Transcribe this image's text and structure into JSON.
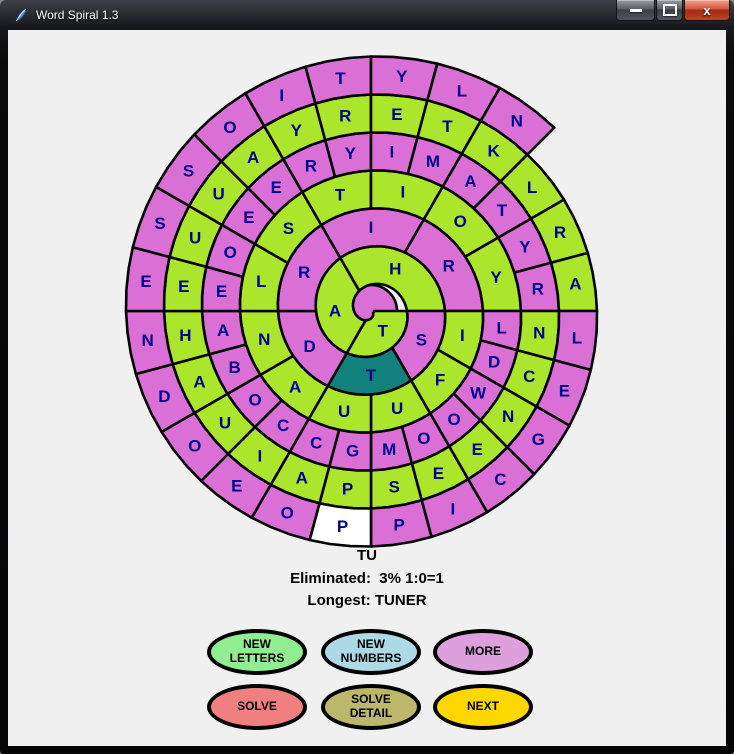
{
  "window": {
    "title": "Word Spiral 1.3",
    "controls": {
      "minimize": "minimize",
      "maximize": "maximize",
      "close": "x"
    }
  },
  "palette": {
    "green": "#abe62d",
    "violet": "#da70d6",
    "teal": "#12807b",
    "white": "#ffffff",
    "letter": "#00008b",
    "outline": "#000000"
  },
  "spiral": {
    "turns": [
      {
        "color": "green",
        "cells": [
          {
            "l": "T"
          },
          {
            "l": "A"
          },
          {
            "l": "H"
          }
        ]
      },
      {
        "color": "violet",
        "cells": [
          {
            "l": "S"
          },
          {
            "l": "T",
            "fill": "teal"
          },
          {
            "l": "D"
          },
          {
            "l": "R"
          },
          {
            "l": "I"
          },
          {
            "l": "R"
          }
        ]
      },
      {
        "color": "green",
        "cells": [
          {
            "l": "I"
          },
          {
            "l": "F"
          },
          {
            "l": "U"
          },
          {
            "l": "U"
          },
          {
            "l": "A"
          },
          {
            "l": "N"
          },
          {
            "l": "L"
          },
          {
            "l": "S"
          },
          {
            "l": "T"
          },
          {
            "l": "I"
          },
          {
            "l": "O"
          },
          {
            "l": "Y"
          }
        ]
      },
      {
        "color": "violet",
        "cells": [
          {
            "l": "L"
          },
          {
            "l": "D"
          },
          {
            "l": "W"
          },
          {
            "l": "O"
          },
          {
            "l": "O"
          },
          {
            "l": "M"
          },
          {
            "l": "G"
          },
          {
            "l": "C"
          },
          {
            "l": "C"
          },
          {
            "l": "O"
          },
          {
            "l": "B"
          },
          {
            "l": "A"
          },
          {
            "l": "E"
          },
          {
            "l": "O"
          },
          {
            "l": "E"
          },
          {
            "l": "E"
          },
          {
            "l": "R"
          },
          {
            "l": "Y"
          },
          {
            "l": "I"
          },
          {
            "l": "M"
          },
          {
            "l": "A"
          },
          {
            "l": "T"
          },
          {
            "l": "Y"
          },
          {
            "l": "R"
          }
        ]
      },
      {
        "color": "green",
        "cells": [
          {
            "l": "N"
          },
          {
            "l": "C"
          },
          {
            "l": "N"
          },
          {
            "l": "E"
          },
          {
            "l": "E"
          },
          {
            "l": "S"
          },
          {
            "l": "P"
          },
          {
            "l": "A"
          },
          {
            "l": "I"
          },
          {
            "l": "U"
          },
          {
            "l": "A"
          },
          {
            "l": "H"
          },
          {
            "l": "E"
          },
          {
            "l": "U"
          },
          {
            "l": "U"
          },
          {
            "l": "A"
          },
          {
            "l": "Y"
          },
          {
            "l": "R"
          },
          {
            "l": "E"
          },
          {
            "l": "T"
          },
          {
            "l": "K"
          },
          {
            "l": "L"
          },
          {
            "l": "R"
          },
          {
            "l": "A"
          }
        ]
      },
      {
        "color": "violet",
        "cells": [
          {
            "l": "L"
          },
          {
            "l": "E"
          },
          {
            "l": "G"
          },
          {
            "l": "C"
          },
          {
            "l": "I"
          },
          {
            "l": "P"
          },
          {
            "l": "P",
            "fill": "white"
          },
          {
            "l": "O"
          },
          {
            "l": "E"
          },
          {
            "l": "O"
          },
          {
            "l": "D"
          },
          {
            "l": "N"
          },
          {
            "l": "E"
          },
          {
            "l": "S"
          },
          {
            "l": "S"
          },
          {
            "l": "O"
          },
          {
            "l": "I"
          },
          {
            "l": "T"
          },
          {
            "l": "Y"
          },
          {
            "l": "L"
          },
          {
            "l": "N"
          }
        ]
      }
    ]
  },
  "status": {
    "word": "TU",
    "eliminated": "Eliminated:  3% 1:0=1",
    "longest": "Longest: TUNER"
  },
  "buttons": [
    {
      "label": "NEW\nLETTERS",
      "color": "#90ee90"
    },
    {
      "label": "NEW\nNUMBERS",
      "color": "#add8e6"
    },
    {
      "label": "MORE",
      "color": "#dda0dd"
    },
    {
      "label": "SOLVE",
      "color": "#f08080"
    },
    {
      "label": "SOLVE\nDETAIL",
      "color": "#bdb76b"
    },
    {
      "label": "NEXT",
      "color": "#ffd700"
    }
  ]
}
